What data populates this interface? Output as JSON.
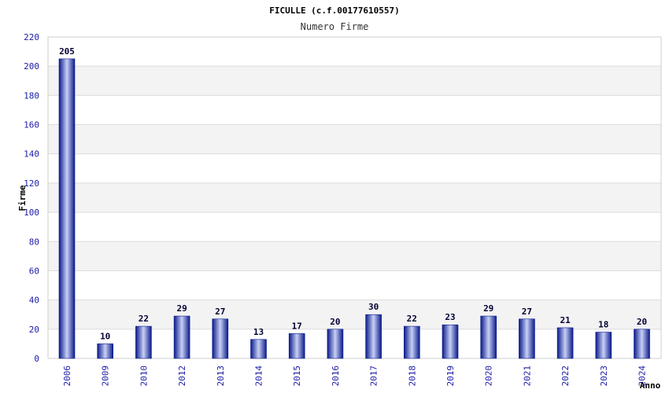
{
  "chart_data": {
    "type": "bar",
    "title": "FICULLE (c.f.00177610557)",
    "subtitle": "Numero Firme",
    "xlabel": "Anno",
    "ylabel": "Firme",
    "ylim": [
      0,
      220
    ],
    "ytick_step": 20,
    "grid": "horizontal, alternating bands",
    "categories": [
      "2006",
      "2009",
      "2010",
      "2012",
      "2013",
      "2014",
      "2015",
      "2016",
      "2017",
      "2018",
      "2019",
      "2020",
      "2021",
      "2022",
      "2023",
      "2024"
    ],
    "values": [
      205,
      10,
      22,
      29,
      27,
      13,
      17,
      20,
      30,
      22,
      23,
      29,
      27,
      21,
      18,
      20
    ],
    "colors": {
      "bar_edge": "#0a1a8a",
      "bar_center": "#c8d0f5",
      "band": "#f3f3f3",
      "grid": "#dcdcdc",
      "tick": "#1a1aa6"
    }
  }
}
